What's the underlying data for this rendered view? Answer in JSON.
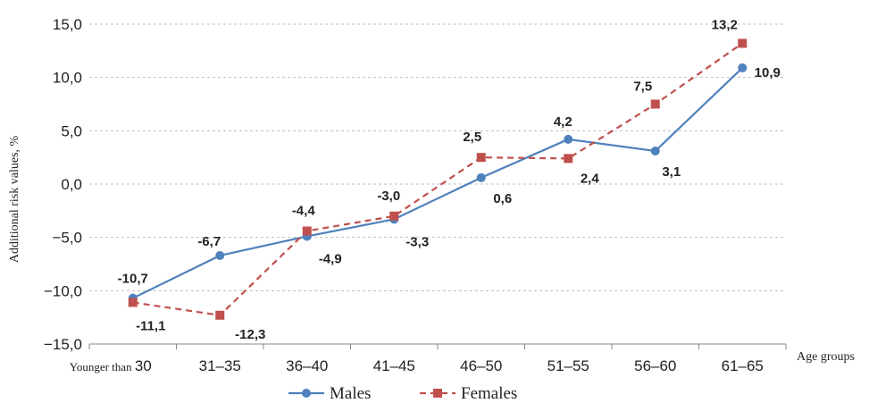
{
  "chart_data": {
    "type": "line",
    "categories": [
      "Younger than 30",
      "31–35",
      "36–40",
      "41–45",
      "46–50",
      "51–55",
      "56–60",
      "61–65"
    ],
    "category_display": [
      {
        "prefix": "Younger than ",
        "main": "30"
      },
      {
        "prefix": "",
        "main": "31–35"
      },
      {
        "prefix": "",
        "main": "36–40"
      },
      {
        "prefix": "",
        "main": "41–45"
      },
      {
        "prefix": "",
        "main": "46–50"
      },
      {
        "prefix": "",
        "main": "51–55"
      },
      {
        "prefix": "",
        "main": "56–60"
      },
      {
        "prefix": "",
        "main": "61–65"
      }
    ],
    "series": [
      {
        "name": "Males",
        "values": [
          -10.7,
          -6.7,
          -4.9,
          -3.3,
          0.6,
          4.2,
          3.1,
          10.9
        ],
        "labels": [
          "-10,7",
          "-6,7",
          "-4,9",
          "-3,3",
          "0,6",
          "4,2",
          "3,1",
          "10,9"
        ],
        "color": "#4f81bd",
        "line_style": "solid",
        "marker": "circle"
      },
      {
        "name": "Females",
        "values": [
          -11.1,
          -12.3,
          -4.4,
          -3.0,
          2.5,
          2.4,
          7.5,
          13.2
        ],
        "labels": [
          "-11,1",
          "-12,3",
          "-4,4",
          "-3,0",
          "2,5",
          "2,4",
          "7,5",
          "13,2"
        ],
        "color": "#c0504d",
        "line_style": "dashed",
        "marker": "square"
      }
    ],
    "yticks": [
      -15,
      -10,
      -5,
      0,
      5,
      10,
      15
    ],
    "ytick_labels": [
      "−15,0",
      "−10,0",
      "−5,0",
      "0,0",
      "5,0",
      "10,0",
      "15,0"
    ],
    "ylim": [
      -15,
      15
    ],
    "ylabel": "Additional risk values, %",
    "xlabel": "Age groups",
    "grid": "horizontal dashed",
    "legend_position": "bottom"
  }
}
